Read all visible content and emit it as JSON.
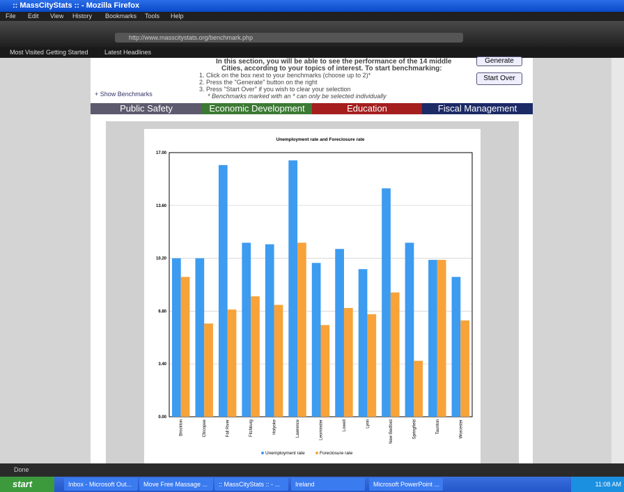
{
  "window": {
    "title": ":: MassCityStats :: - Mozilla Firefox",
    "menu": [
      "File",
      "Edit",
      "View",
      "History",
      "Bookmarks",
      "Tools",
      "Help"
    ],
    "url": "http://www.masscitystats.org/benchmark.php",
    "bookmarks": [
      "Most Visited",
      "Getting Started",
      "Latest Headlines"
    ],
    "status": "Done"
  },
  "page": {
    "intro": [
      "In this section, you will be able to see the performance of the 14 middle",
      "Cities, according to your topics of interest. To start benchmarking:"
    ],
    "steps": [
      "1.  Click on the box next to your benchmarks (choose up to 2)*",
      "2.  Press the \"Generate\" button on the right",
      "3.  Press \"Start Over\" if you wish to clear your selection",
      "* Benchmarks marked with an * can only be selected individually"
    ],
    "show_benchmarks": "+ Show Benchmarks",
    "buttons": [
      "Generate",
      "Start Over"
    ],
    "tabs": [
      "Public Safety",
      "Economic Development",
      "Education",
      "Fiscal Management"
    ]
  },
  "chart_data": {
    "type": "bar",
    "title": "Unemployment rate and Foreclosure rate",
    "categories": [
      "Brockton",
      "Chicopee",
      "Fall River",
      "Fitchburg",
      "Holyoke",
      "Lawrence",
      "Leominster",
      "Lowell",
      "Lynn",
      "New Bedford",
      "Springfield",
      "Taunton",
      "Worcester"
    ],
    "series": [
      {
        "name": "Unemployment rate",
        "color": "#3d9bf0",
        "values": [
          10.2,
          10.2,
          16.2,
          11.2,
          11.1,
          16.5,
          9.9,
          10.8,
          9.5,
          14.7,
          11.2,
          10.1,
          9.0
        ]
      },
      {
        "name": "Foreclosure rate",
        "color": "#f7a33a",
        "values": [
          9.0,
          6.0,
          6.9,
          7.75,
          7.2,
          11.2,
          5.9,
          7.0,
          6.6,
          8.0,
          3.6,
          10.1,
          6.2
        ]
      }
    ],
    "ylim": [
      0,
      17
    ],
    "yticks": [
      {
        "value": 0,
        "label": "0.00"
      },
      {
        "value": 3.4,
        "label": "3.40"
      },
      {
        "value": 6.8,
        "label": "6.80"
      },
      {
        "value": 10.2,
        "label": "10.20"
      },
      {
        "value": 13.6,
        "label": "13.60"
      },
      {
        "value": 17,
        "label": "17.00"
      }
    ],
    "grid": true
  },
  "taskbar": {
    "start": "start",
    "items": [
      "Inbox - Microsoft Out...",
      "Move Free Massage ...",
      ":: MassCityStats :: - ...",
      "Ireland",
      "Microsoft PowerPoint ..."
    ],
    "clock": "11:08 AM"
  }
}
